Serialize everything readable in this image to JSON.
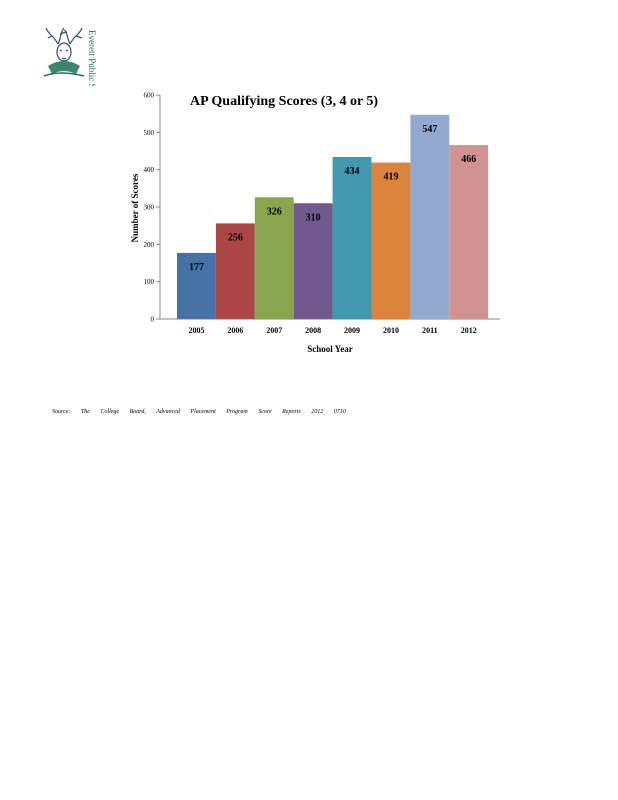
{
  "logo": {
    "icon": "stag-emblem-icon",
    "text": "Everett Public Schools",
    "color": "#1d6e52"
  },
  "source": "Source: The College Board, Advanced Placement Program Score Reports 2012 0710",
  "chart_data": {
    "type": "bar",
    "title": "AP Qualifying Scores (3, 4 or 5)",
    "xlabel": "School Year",
    "ylabel": "Number of Scores",
    "categories": [
      "2005",
      "2006",
      "2007",
      "2008",
      "2009",
      "2010",
      "2011",
      "2012"
    ],
    "values": [
      177,
      256,
      326,
      310,
      434,
      419,
      547,
      466
    ],
    "colors": [
      "#4672a8",
      "#aa4644",
      "#89a54e",
      "#71588f",
      "#4198af",
      "#db843d",
      "#93a9cf",
      "#d19392"
    ],
    "ylim": [
      0,
      600
    ],
    "yticks": [
      0,
      100,
      200,
      300,
      400,
      500,
      600
    ],
    "grid": false,
    "legend": "none",
    "data_labels": true
  }
}
